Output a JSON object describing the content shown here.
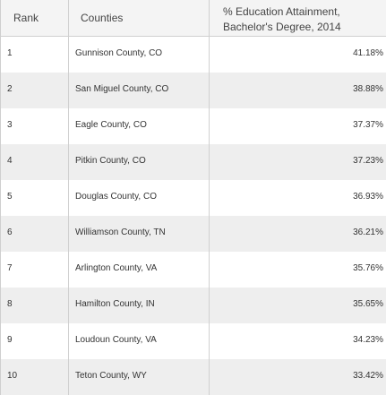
{
  "table": {
    "headers": {
      "rank": "Rank",
      "county": "Counties",
      "value": "% Education Attainment,\nBachelor's Degree, 2014"
    },
    "rows": [
      {
        "rank": "1",
        "county": "Gunnison County, CO",
        "value": "41.18%"
      },
      {
        "rank": "2",
        "county": "San Miguel County, CO",
        "value": "38.88%"
      },
      {
        "rank": "3",
        "county": "Eagle County, CO",
        "value": "37.37%"
      },
      {
        "rank": "4",
        "county": "Pitkin County, CO",
        "value": "37.23%"
      },
      {
        "rank": "5",
        "county": "Douglas County, CO",
        "value": "36.93%"
      },
      {
        "rank": "6",
        "county": "Williamson County, TN",
        "value": "36.21%"
      },
      {
        "rank": "7",
        "county": "Arlington County, VA",
        "value": "35.76%"
      },
      {
        "rank": "8",
        "county": "Hamilton County, IN",
        "value": "35.65%"
      },
      {
        "rank": "9",
        "county": "Loudoun County, VA",
        "value": "34.23%"
      },
      {
        "rank": "10",
        "county": "Teton County, WY",
        "value": "33.42%"
      }
    ]
  }
}
